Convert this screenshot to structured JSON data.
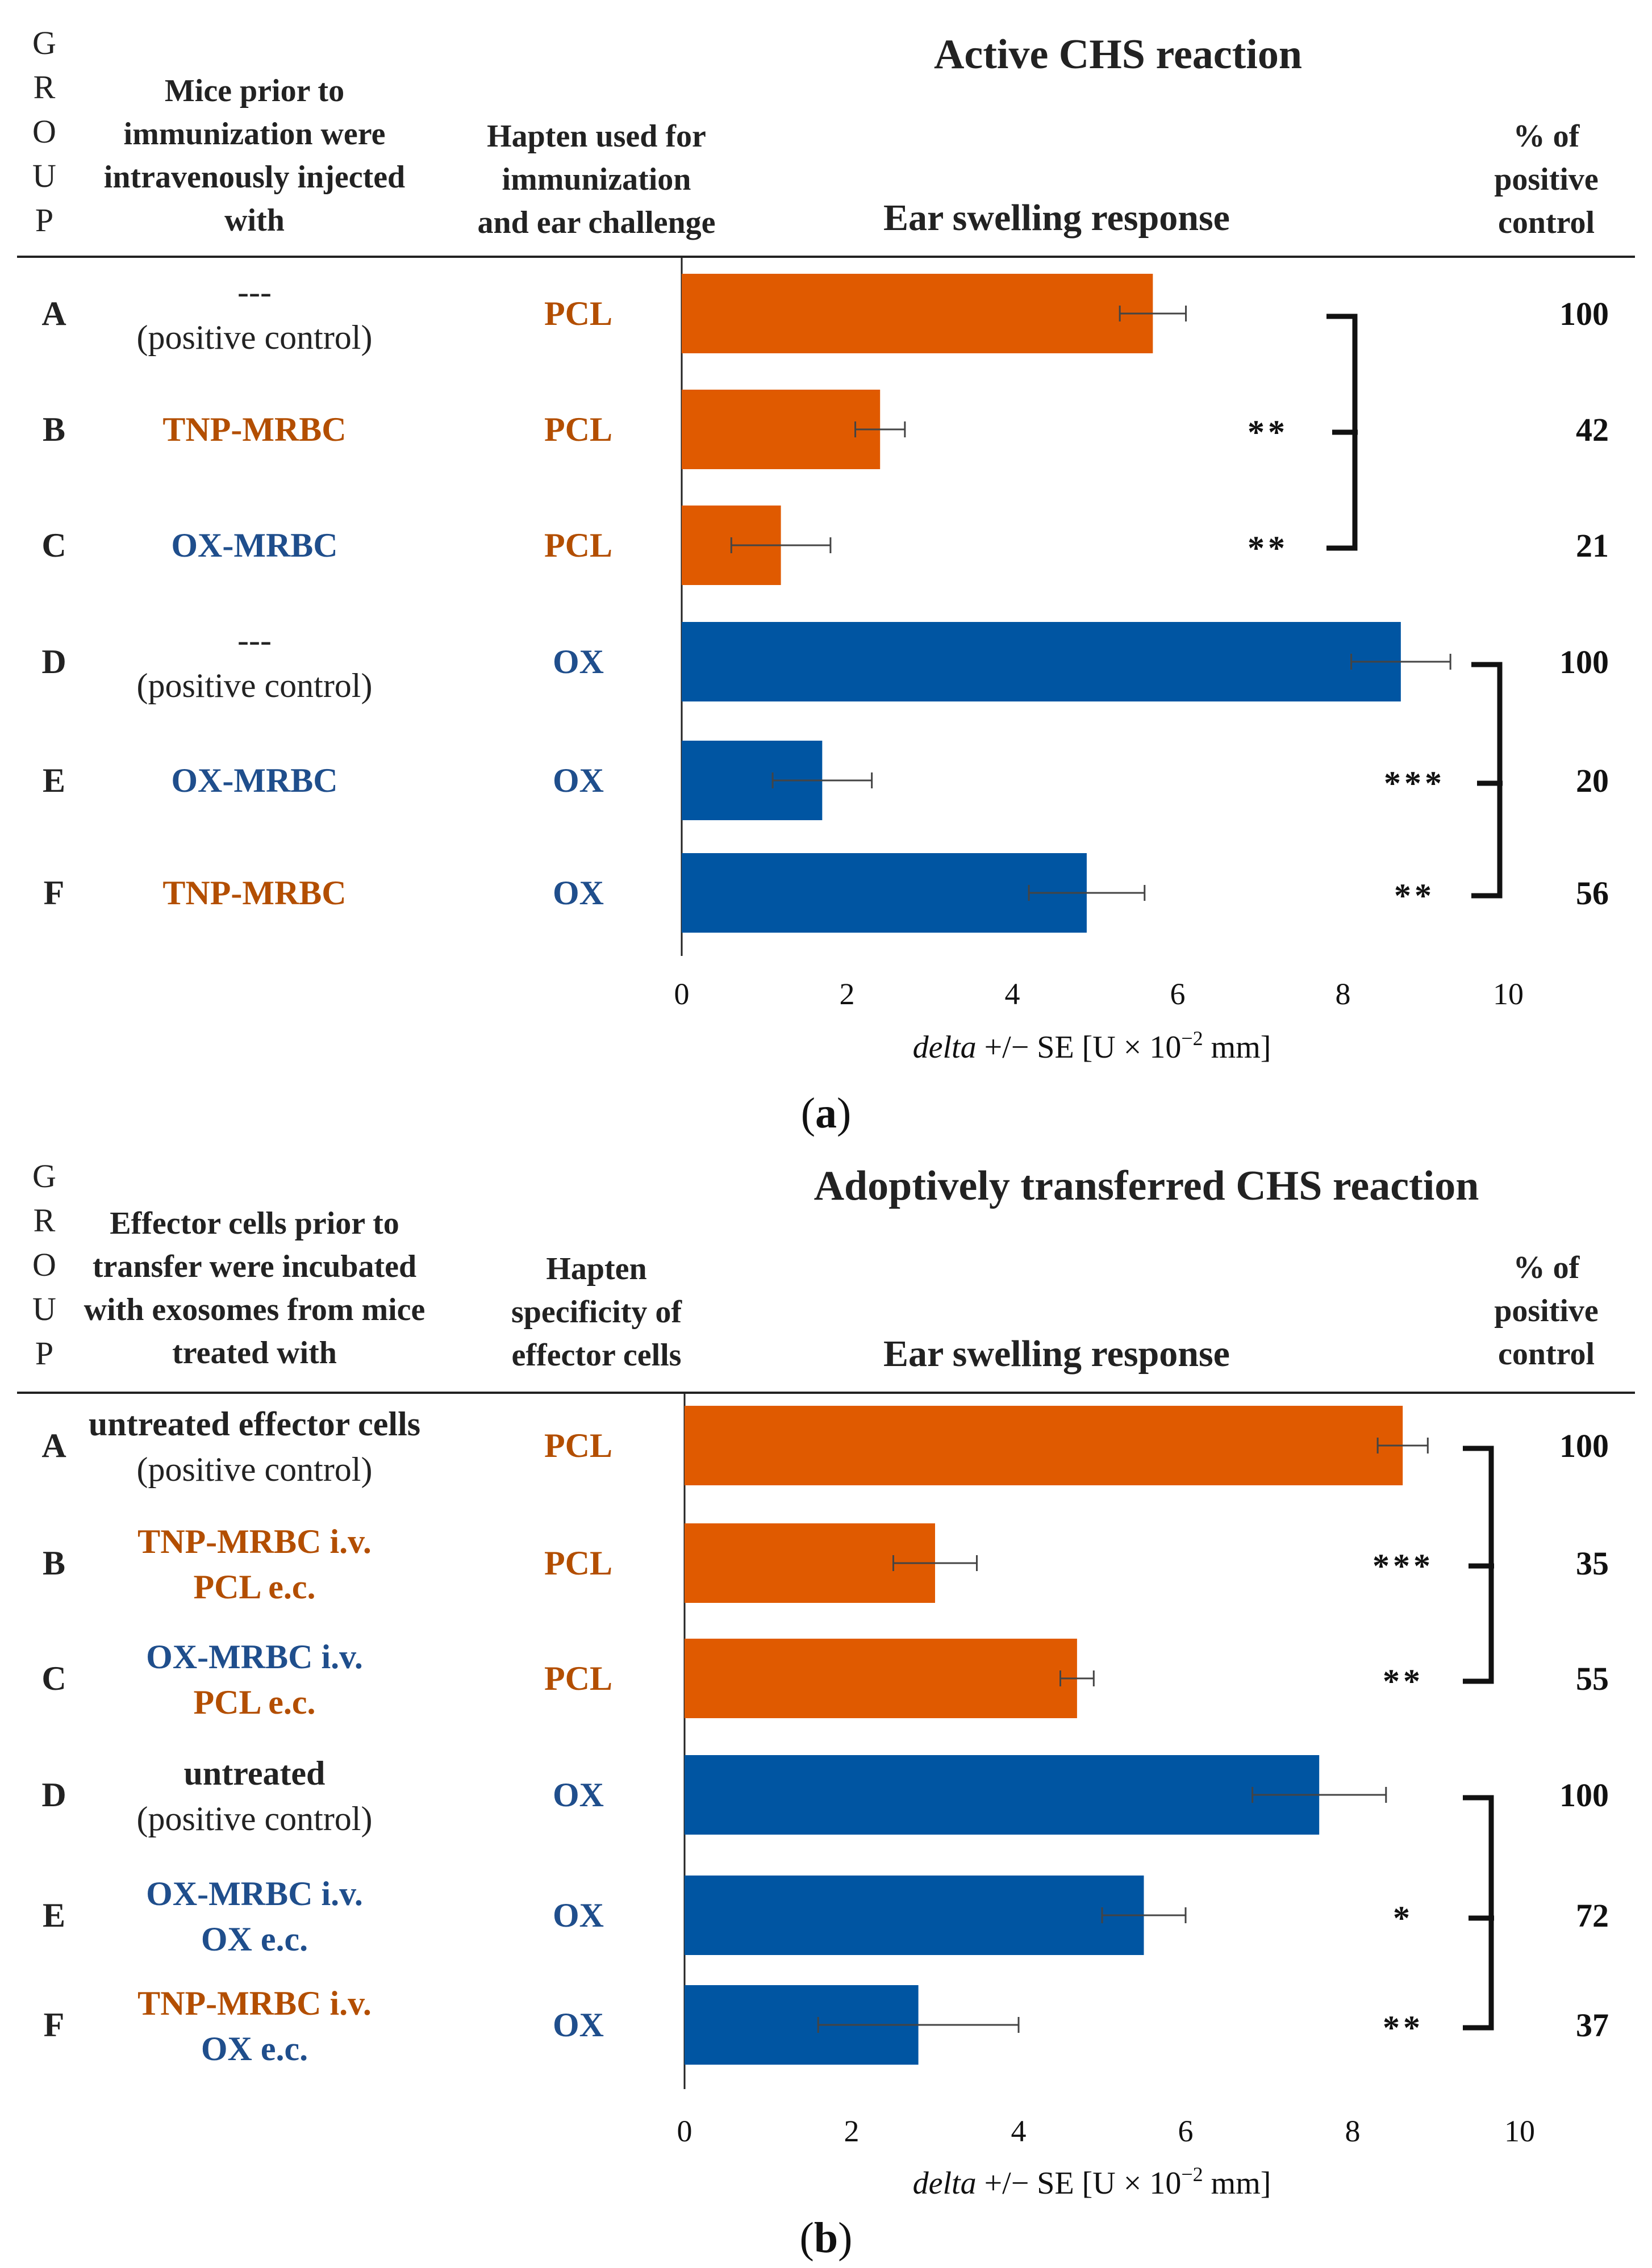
{
  "colors": {
    "pcl": "#e05a00",
    "ox": "#0055a2",
    "pcl_text": "#b34e00",
    "ox_text": "#1f4e8c",
    "black": "#222222"
  },
  "chart_data": [
    {
      "panel": "a",
      "caption": "(a)",
      "title": "Active CHS reaction",
      "subtitle": "Ear swelling response",
      "type": "bar",
      "orientation": "horizontal",
      "headers": {
        "group_letters": [
          "G",
          "R",
          "O",
          "U",
          "P"
        ],
        "col1": [
          "Mice prior to",
          "immunization were",
          "intravenously injected",
          "with"
        ],
        "col2": [
          "Hapten used for",
          "immunization",
          "and ear challenge"
        ],
        "pct": [
          "% of",
          "positive",
          "control"
        ]
      },
      "xlabel": {
        "italic": "delta",
        "rest": " +/− SE [U × 10",
        "sup": "−2",
        "tail": " mm]"
      },
      "xlim": [
        0,
        10
      ],
      "xticks": [
        0,
        2,
        4,
        6,
        8,
        10
      ],
      "rows": [
        {
          "group": "A",
          "desc": [
            "---",
            "(positive control)"
          ],
          "desc_colors": [
            "black",
            "black"
          ],
          "hapten": "PCL",
          "hapten_color": "pcl_text",
          "value": 5.7,
          "err": 0.4,
          "bar": "pcl",
          "pct": "100"
        },
        {
          "group": "B",
          "desc": [
            "TNP-MRBC"
          ],
          "desc_colors": [
            "pcl_text"
          ],
          "hapten": "PCL",
          "hapten_color": "pcl_text",
          "value": 2.4,
          "err": 0.3,
          "bar": "pcl",
          "pct": "42"
        },
        {
          "group": "C",
          "desc": [
            "OX-MRBC"
          ],
          "desc_colors": [
            "ox_text"
          ],
          "hapten": "PCL",
          "hapten_color": "pcl_text",
          "value": 1.2,
          "err": 0.6,
          "bar": "pcl",
          "pct": "21"
        },
        {
          "group": "D",
          "desc": [
            "---",
            "(positive control)"
          ],
          "desc_colors": [
            "black",
            "black"
          ],
          "hapten": "OX",
          "hapten_color": "ox_text",
          "value": 8.7,
          "err": 0.6,
          "bar": "ox",
          "pct": "100"
        },
        {
          "group": "E",
          "desc": [
            "OX-MRBC"
          ],
          "desc_colors": [
            "ox_text"
          ],
          "hapten": "OX",
          "hapten_color": "ox_text",
          "value": 1.7,
          "err": 0.6,
          "bar": "ox",
          "pct": "20"
        },
        {
          "group": "F",
          "desc": [
            "TNP-MRBC"
          ],
          "desc_colors": [
            "pcl_text"
          ],
          "hapten": "OX",
          "hapten_color": "ox_text",
          "value": 4.9,
          "err": 0.7,
          "bar": "ox",
          "pct": "56"
        }
      ],
      "significance": [
        {
          "ref": 0,
          "targets": [
            {
              "row": 1,
              "stars": "**"
            },
            {
              "row": 2,
              "stars": "**"
            }
          ]
        },
        {
          "ref": 3,
          "targets": [
            {
              "row": 4,
              "stars": "***"
            },
            {
              "row": 5,
              "stars": "**"
            }
          ]
        }
      ]
    },
    {
      "panel": "b",
      "caption": "(b)",
      "title": "Adoptively transferred CHS reaction",
      "subtitle": "Ear swelling response",
      "type": "bar",
      "orientation": "horizontal",
      "headers": {
        "group_letters": [
          "G",
          "R",
          "O",
          "U",
          "P"
        ],
        "col1": [
          "Effector cells prior to",
          "transfer were incubated",
          "with exosomes from mice",
          "treated with"
        ],
        "col2": [
          "Hapten",
          "specificity of",
          "effector cells"
        ],
        "pct": [
          "% of",
          "positive",
          "control"
        ]
      },
      "xlabel": {
        "italic": "delta",
        "rest": " +/− SE [U × 10",
        "sup": "−2",
        "tail": " mm]"
      },
      "xlim": [
        0,
        10
      ],
      "xticks": [
        0,
        2,
        4,
        6,
        8,
        10
      ],
      "rows": [
        {
          "group": "A",
          "desc": [
            "untreated effector cells",
            "(positive control)"
          ],
          "desc_colors": [
            "black",
            "black"
          ],
          "desc_bold": [
            true,
            false
          ],
          "hapten": "PCL",
          "hapten_color": "pcl_text",
          "value": 8.6,
          "err": 0.3,
          "bar": "pcl",
          "pct": "100"
        },
        {
          "group": "B",
          "desc": [
            "TNP-MRBC i.v.",
            "PCL e.c."
          ],
          "desc_colors": [
            "pcl_text",
            "pcl_text"
          ],
          "desc_bold": [
            true,
            true
          ],
          "hapten": "PCL",
          "hapten_color": "pcl_text",
          "value": 3.0,
          "err": 0.5,
          "bar": "pcl",
          "pct": "35"
        },
        {
          "group": "C",
          "desc": [
            "OX-MRBC i.v.",
            "PCL e.c."
          ],
          "desc_colors": [
            "ox_text",
            "pcl_text"
          ],
          "desc_bold": [
            true,
            true
          ],
          "hapten": "PCL",
          "hapten_color": "pcl_text",
          "value": 4.7,
          "err": 0.2,
          "bar": "pcl",
          "pct": "55"
        },
        {
          "group": "D",
          "desc": [
            "untreated",
            "(positive control)"
          ],
          "desc_colors": [
            "black",
            "black"
          ],
          "desc_bold": [
            true,
            false
          ],
          "hapten": "OX",
          "hapten_color": "ox_text",
          "value": 7.6,
          "err": 0.8,
          "bar": "ox",
          "pct": "100"
        },
        {
          "group": "E",
          "desc": [
            "OX-MRBC i.v.",
            "OX e.c."
          ],
          "desc_colors": [
            "ox_text",
            "ox_text"
          ],
          "desc_bold": [
            true,
            true
          ],
          "hapten": "OX",
          "hapten_color": "ox_text",
          "value": 5.5,
          "err": 0.5,
          "bar": "ox",
          "pct": "72"
        },
        {
          "group": "F",
          "desc": [
            "TNP-MRBC i.v.",
            "OX e.c."
          ],
          "desc_colors": [
            "pcl_text",
            "ox_text"
          ],
          "desc_bold": [
            true,
            true
          ],
          "hapten": "OX",
          "hapten_color": "ox_text",
          "value": 2.8,
          "err": 1.2,
          "bar": "ox",
          "pct": "37"
        }
      ],
      "significance": [
        {
          "ref": 0,
          "targets": [
            {
              "row": 1,
              "stars": "***"
            },
            {
              "row": 2,
              "stars": "**"
            }
          ]
        },
        {
          "ref": 3,
          "targets": [
            {
              "row": 4,
              "stars": "*"
            },
            {
              "row": 5,
              "stars": "**"
            }
          ]
        }
      ]
    }
  ]
}
